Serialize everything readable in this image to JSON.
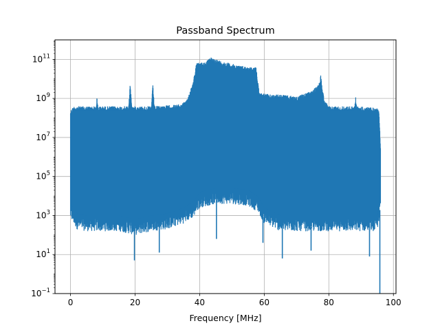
{
  "chart_data": {
    "type": "line",
    "title": "Passband Spectrum",
    "xlabel": "Frequency [MHz]",
    "ylabel": "",
    "xlim": [
      -4.8,
      100.8
    ],
    "ylim_exponent": [
      -1,
      12
    ],
    "yscale": "log",
    "grid": true,
    "color": "#1f77b4",
    "x_ticks": [
      {
        "value": 0,
        "label": "0"
      },
      {
        "value": 20,
        "label": "20"
      },
      {
        "value": 40,
        "label": "40"
      },
      {
        "value": 60,
        "label": "60"
      },
      {
        "value": 80,
        "label": "80"
      },
      {
        "value": 100,
        "label": "100"
      }
    ],
    "y_ticks": [
      {
        "exp": -1,
        "base": "10",
        "sup": "−1"
      },
      {
        "exp": 1,
        "base": "10",
        "sup": "1"
      },
      {
        "exp": 3,
        "base": "10",
        "sup": "3"
      },
      {
        "exp": 5,
        "base": "10",
        "sup": "5"
      },
      {
        "exp": 7,
        "base": "10",
        "sup": "7"
      },
      {
        "exp": 9,
        "base": "10",
        "sup": "9"
      },
      {
        "exp": 11,
        "base": "10",
        "sup": "11"
      }
    ],
    "series": [
      {
        "x_range_mhz": [
          0,
          96
        ],
        "envelope_upper_log10": [
          [
            0,
            8.4
          ],
          [
            1,
            8.6
          ],
          [
            4,
            8.6
          ],
          [
            8,
            8.6
          ],
          [
            8.2,
            9.1
          ],
          [
            8.5,
            8.6
          ],
          [
            18,
            8.6
          ],
          [
            18.5,
            9.8
          ],
          [
            19,
            8.6
          ],
          [
            25,
            8.6
          ],
          [
            25.5,
            9.7
          ],
          [
            26,
            8.6
          ],
          [
            34,
            8.7
          ],
          [
            36,
            8.9
          ],
          [
            38,
            9.9
          ],
          [
            39,
            10.8
          ],
          [
            42,
            10.9
          ],
          [
            43.5,
            11.1
          ],
          [
            47,
            10.9
          ],
          [
            52,
            10.7
          ],
          [
            56,
            10.6
          ],
          [
            57.5,
            10.6
          ],
          [
            58.5,
            9.3
          ],
          [
            62,
            9.2
          ],
          [
            65,
            9.2
          ],
          [
            70,
            9.1
          ],
          [
            75,
            9.4
          ],
          [
            77,
            9.8
          ],
          [
            77.5,
            10.2
          ],
          [
            78.5,
            9.0
          ],
          [
            80,
            8.6
          ],
          [
            88,
            8.6
          ],
          [
            88.3,
            9.1
          ],
          [
            88.7,
            8.6
          ],
          [
            95.5,
            8.5
          ],
          [
            96,
            6.6
          ]
        ],
        "envelope_lower_log10": [
          [
            0,
            3.0
          ],
          [
            2,
            2.5
          ],
          [
            5,
            2.4
          ],
          [
            10,
            2.4
          ],
          [
            15,
            2.4
          ],
          [
            20,
            2.2
          ],
          [
            25,
            2.4
          ],
          [
            30,
            2.5
          ],
          [
            35,
            2.8
          ],
          [
            38,
            3.1
          ],
          [
            40,
            3.6
          ],
          [
            45,
            3.8
          ],
          [
            50,
            3.8
          ],
          [
            55,
            3.7
          ],
          [
            58,
            3.4
          ],
          [
            60,
            2.8
          ],
          [
            65,
            2.4
          ],
          [
            70,
            2.4
          ],
          [
            75,
            2.4
          ],
          [
            80,
            2.4
          ],
          [
            85,
            2.4
          ],
          [
            90,
            2.4
          ],
          [
            95,
            2.4
          ],
          [
            96,
            3.5
          ]
        ],
        "notable_dips": [
          {
            "x": 19.8,
            "log10": 0.7
          },
          {
            "x": 27.5,
            "log10": 1.1
          },
          {
            "x": 45.2,
            "log10": 1.8
          },
          {
            "x": 59.6,
            "log10": 1.6
          },
          {
            "x": 65.6,
            "log10": 0.8
          },
          {
            "x": 74.5,
            "log10": 1.2
          },
          {
            "x": 92.6,
            "log10": 0.9
          },
          {
            "x": 95.8,
            "log10": -1.0
          }
        ]
      }
    ]
  }
}
